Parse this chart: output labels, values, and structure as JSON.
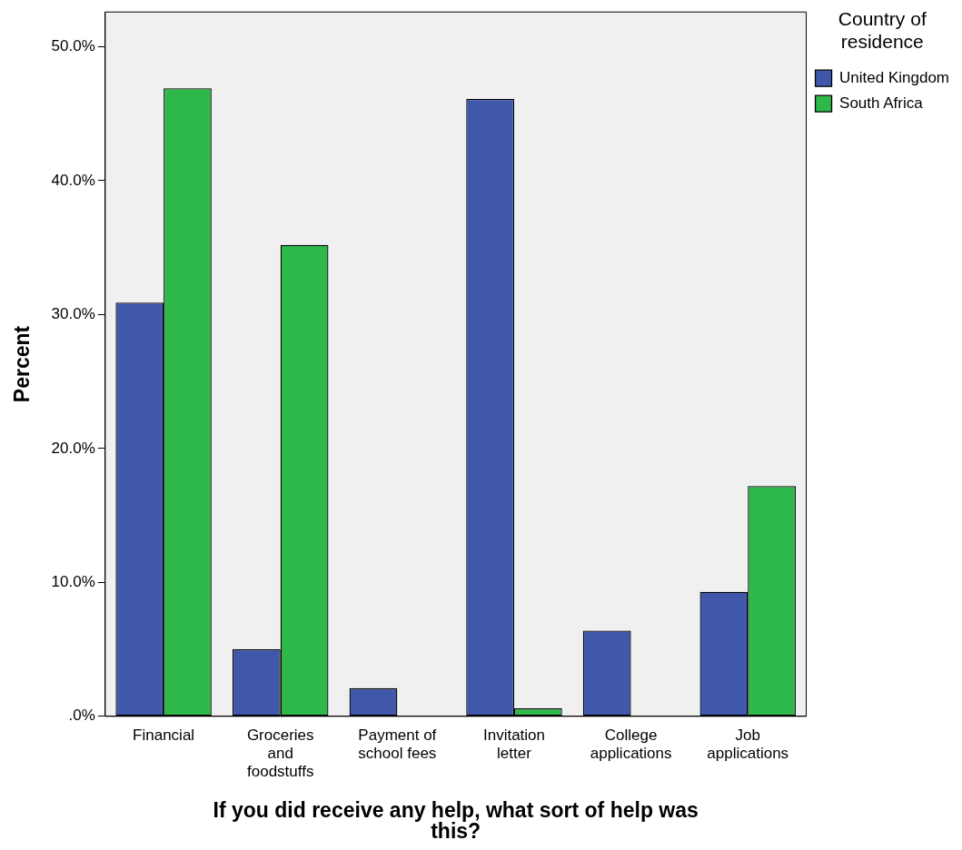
{
  "chart_data": {
    "type": "bar",
    "xlabel": "If you did receive any help, what sort of help was this?",
    "ylabel": "Percent",
    "legend_title": "Country of residence",
    "categories": [
      "Financial",
      "Groceries and foodstuffs",
      "Payment of school fees",
      "Invitation letter",
      "College applications",
      "Job applications"
    ],
    "series": [
      {
        "name": "United Kingdom",
        "color": "#3f58aa",
        "values": [
          30.9,
          5.0,
          2.1,
          46.1,
          6.4,
          9.3
        ]
      },
      {
        "name": "South Africa",
        "color": "#2fb84a",
        "values": [
          46.9,
          35.2,
          0,
          0.6,
          0,
          17.2
        ]
      }
    ],
    "ylim": [
      0,
      52.6
    ],
    "yticks": [
      {
        "value": 0,
        "label": ".0%"
      },
      {
        "value": 10,
        "label": "10.0%"
      },
      {
        "value": 20,
        "label": "20.0%"
      },
      {
        "value": 30,
        "label": "30.0%"
      },
      {
        "value": 40,
        "label": "40.0%"
      },
      {
        "value": 50,
        "label": "50.0%"
      }
    ],
    "grid": false,
    "legend": "top right"
  }
}
